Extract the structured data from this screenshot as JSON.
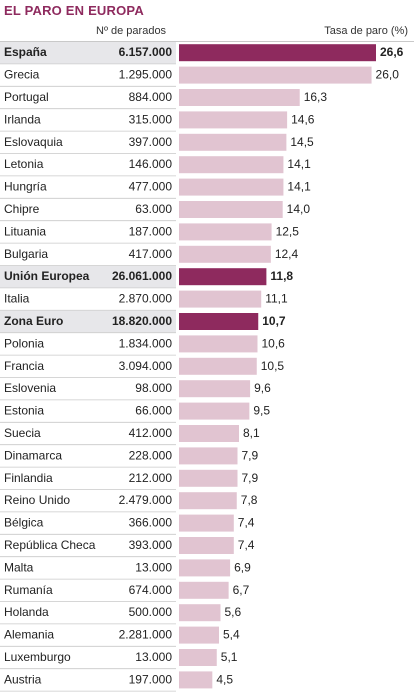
{
  "chart_data": {
    "type": "bar",
    "title": "EL PARO EN EUROPA",
    "column_headers": {
      "count": "Nº de parados",
      "rate": "Tasa de paro (%)"
    },
    "categories": [
      "España",
      "Grecia",
      "Portugal",
      "Irlanda",
      "Eslovaquia",
      "Letonia",
      "Hungría",
      "Chipre",
      "Lituania",
      "Bulgaria",
      "Unión Europea",
      "Italia",
      "Zona Euro",
      "Polonia",
      "Francia",
      "Eslovenia",
      "Estonia",
      "Suecia",
      "Dinamarca",
      "Finlandia",
      "Reino Unido",
      "Bélgica",
      "República Checa",
      "Malta",
      "Rumanía",
      "Holanda",
      "Alemania",
      "Luxemburgo",
      "Austria"
    ],
    "unemployed": [
      "6.157.000",
      "1.295.000",
      "884.000",
      "315.000",
      "397.000",
      "146.000",
      "477.000",
      "63.000",
      "187.000",
      "417.000",
      "26.061.000",
      "2.870.000",
      "18.820.000",
      "1.834.000",
      "3.094.000",
      "98.000",
      "66.000",
      "412.000",
      "228.000",
      "212.000",
      "2.479.000",
      "366.000",
      "393.000",
      "13.000",
      "674.000",
      "500.000",
      "2.281.000",
      "13.000",
      "197.000"
    ],
    "values": [
      26.6,
      26.0,
      16.3,
      14.6,
      14.5,
      14.1,
      14.1,
      14.0,
      12.5,
      12.4,
      11.8,
      11.1,
      10.7,
      10.6,
      10.5,
      9.6,
      9.5,
      8.1,
      7.9,
      7.9,
      7.8,
      7.4,
      7.4,
      6.9,
      6.7,
      5.6,
      5.4,
      5.1,
      4.5
    ],
    "value_labels": [
      "26,6",
      "26,0",
      "16,3",
      "14,6",
      "14,5",
      "14,1",
      "14,1",
      "14,0",
      "12,5",
      "12,4",
      "11,8",
      "11,1",
      "10,7",
      "10,6",
      "10,5",
      "9,6",
      "9,5",
      "8,1",
      "7,9",
      "7,9",
      "7,8",
      "7,4",
      "7,4",
      "6,9",
      "6,7",
      "5,6",
      "5,4",
      "5,1",
      "4,5"
    ],
    "highlighted": [
      "España",
      "Unión Europea",
      "Zona Euro"
    ],
    "xlim": [
      0,
      26.6
    ],
    "colors": {
      "highlight": "#8e2a5e",
      "normal": "#e1c4d1",
      "highlight_row": "#e7e7ea",
      "title": "#8e2a5e",
      "separator": "#c9c9c9"
    }
  }
}
